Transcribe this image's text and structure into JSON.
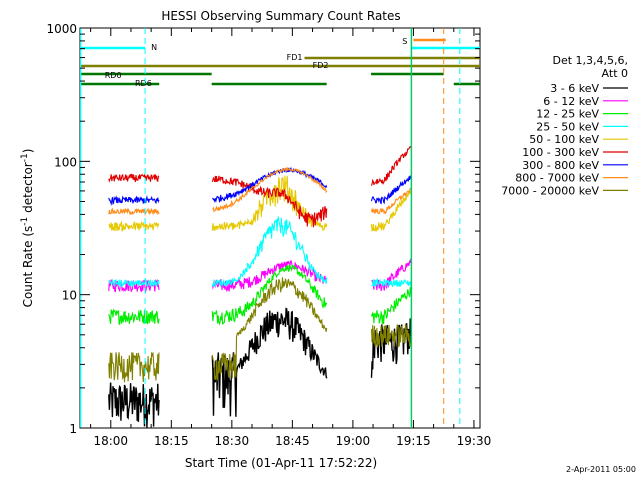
{
  "chart_data": {
    "type": "line",
    "title": "HESSI Observing Summary Count Rates",
    "xlabel": "Start Time (01-Apr-11 17:52:22)",
    "ylabel": "Count Rate (s",
    "ylabel_sup": "-1",
    "ylabel_mid": " detector",
    "ylabel_close": ")",
    "x_ticks": [
      "18:00",
      "18:15",
      "18:30",
      "18:45",
      "19:00",
      "19:15",
      "19:30"
    ],
    "x_tick_minutes": [
      0,
      15,
      30,
      45,
      60,
      75,
      90
    ],
    "xlim_minutes": [
      -7.63,
      91.5
    ],
    "y_ticks": [
      "1",
      "10",
      "100",
      "1000"
    ],
    "y_tick_values": [
      1,
      10,
      100,
      1000
    ],
    "yscale": "log",
    "ylim": [
      1,
      1000
    ],
    "legend_header": [
      "Det 1,3,4,5,6,",
      "Att 0"
    ],
    "legend_placement": "right",
    "series": [
      {
        "name": "3 - 6 keV",
        "color": "#000000"
      },
      {
        "name": "6 - 12 keV",
        "color": "#ff00ff"
      },
      {
        "name": "12 - 25 keV",
        "color": "#00ee00"
      },
      {
        "name": "25 - 50 keV",
        "color": "#00ffff"
      },
      {
        "name": "50 - 100 keV",
        "color": "#e6c800"
      },
      {
        "name": "100 - 300 keV",
        "color": "#e00000"
      },
      {
        "name": "300 - 800 keV",
        "color": "#0000ff"
      },
      {
        "name": "800 - 7000 keV",
        "color": "#ff8c1a"
      },
      {
        "name": "7000 - 20000 keV",
        "color": "#808000"
      }
    ],
    "flag_labels": {
      "n": "N",
      "s": "S",
      "fd1": "FD1",
      "fd2": "FD2",
      "rd0": "RD0",
      "rd6": "RD6"
    },
    "data_gaps_minutes": [
      [
        -7.63,
        -0.5
      ],
      [
        12.0,
        25.0
      ],
      [
        53.5,
        64.5
      ],
      [
        74.5,
        91.5
      ]
    ],
    "footer_date": "2-Apr-2011 05:00"
  }
}
